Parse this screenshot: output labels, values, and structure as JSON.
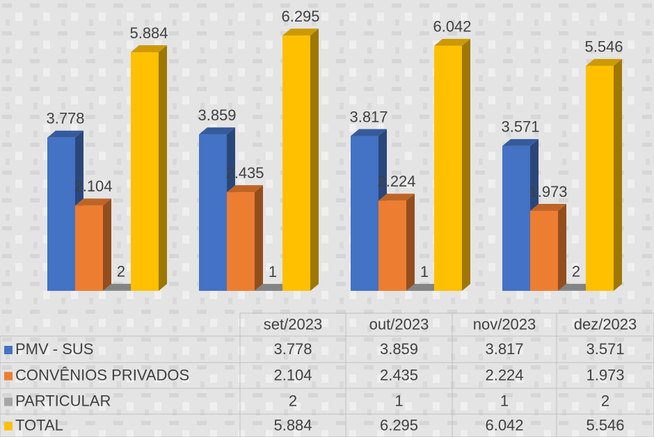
{
  "chart_data": {
    "type": "bar3d",
    "categories": [
      "set/2023",
      "out/2023",
      "nov/2023",
      "dez/2023"
    ],
    "series": [
      {
        "name": "PMV - SUS",
        "color": "#4472c4",
        "values": [
          3778,
          3859,
          3817,
          3571
        ],
        "value_labels": [
          "3.778",
          "3.859",
          "3.817",
          "3.571"
        ]
      },
      {
        "name": "CONVÊNIOS PRIVADOS",
        "color": "#ed7d31",
        "values": [
          2104,
          2435,
          2224,
          1973
        ],
        "value_labels": [
          "2.104",
          "2.435",
          "2.224",
          "1.973"
        ]
      },
      {
        "name": "PARTICULAR",
        "color": "#a5a5a5",
        "values": [
          2,
          1,
          1,
          2
        ]
      },
      {
        "name": "TOTAL",
        "color": "#ffc000",
        "values": [
          5884,
          6295,
          6042,
          5546
        ],
        "value_labels": [
          "5.884",
          "6.295",
          "6.042",
          "5.546"
        ]
      }
    ],
    "ylim": [
      0,
      7000
    ]
  }
}
